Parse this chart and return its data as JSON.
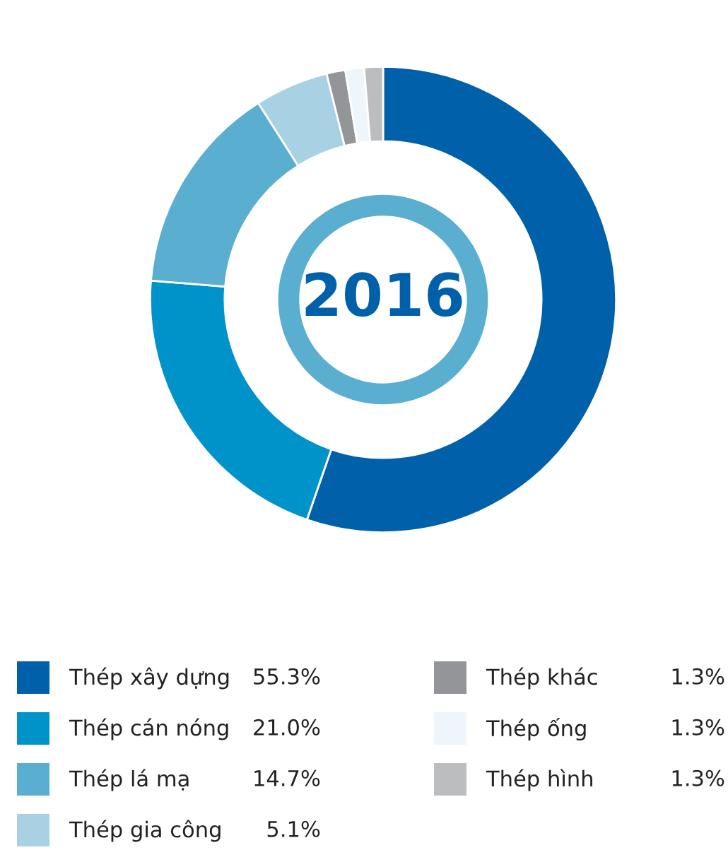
{
  "chart_data": {
    "type": "donut",
    "title": "2016",
    "categories": [
      "Thép xây dựng",
      "Thép cán nóng",
      "Thép lá mạ",
      "Thép gia công",
      "Thép khác",
      "Thép ống",
      "Thép hình"
    ],
    "values": [
      55.3,
      21.0,
      14.7,
      5.1,
      1.3,
      1.3,
      1.3
    ],
    "value_labels": [
      "55.3%",
      "21.0%",
      "14.7%",
      "5.1%",
      "1.3%",
      "1.3%",
      "1.3%"
    ],
    "colors": [
      "#0060a9",
      "#0093c9",
      "#5aaed0",
      "#a8d1e4",
      "#939598",
      "#eef6fc",
      "#bcbdbf"
    ],
    "legend": "bottom"
  }
}
